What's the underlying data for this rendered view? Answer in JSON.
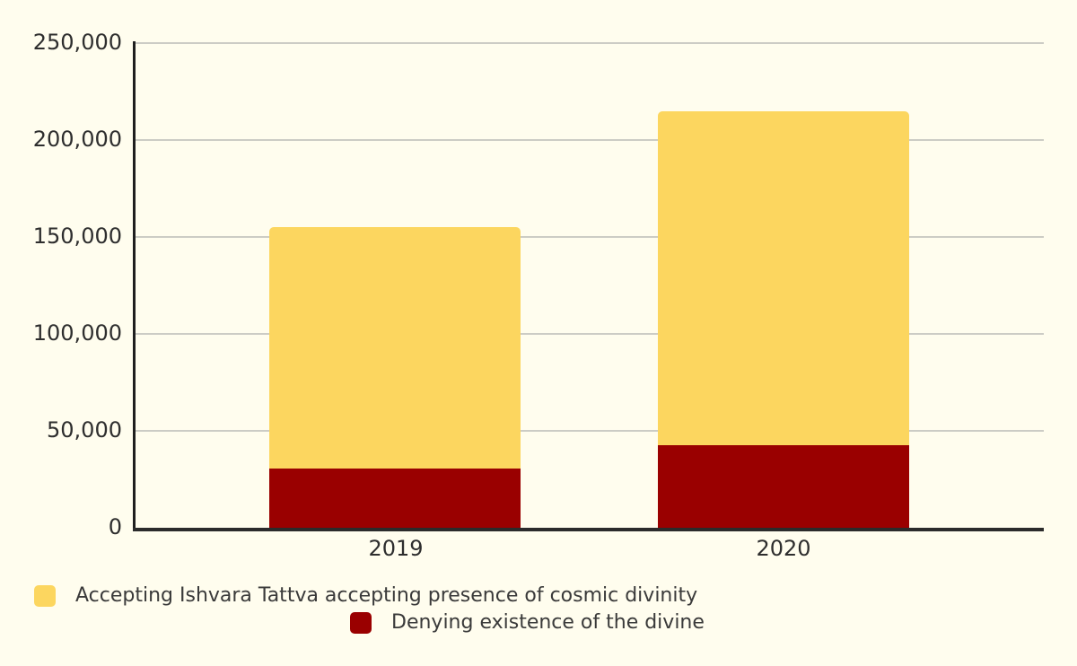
{
  "chart_data": {
    "type": "bar",
    "stacked": true,
    "title": "",
    "xlabel": "",
    "ylabel": "",
    "categories": [
      "2019",
      "2020"
    ],
    "series": [
      {
        "name": "Accepting Ishvara Tattva accepting presence of cosmic divinity",
        "color": "#FCD65F",
        "values": [
          124500,
          172500
        ]
      },
      {
        "name": "Denying existence of the divine",
        "color": "#9A0000",
        "values": [
          30500,
          42500
        ]
      }
    ],
    "stack_order_bottom_to_top": [
      "Denying existence of the divine",
      "Accepting Ishvara Tattva accepting presence of cosmic divinity"
    ],
    "totals": [
      155000,
      215000
    ],
    "ylim": [
      0,
      250000
    ],
    "yticks": [
      {
        "label": "250,000",
        "value": 250000
      },
      {
        "label": "200,000",
        "value": 200000
      },
      {
        "label": "150,000",
        "value": 150000
      },
      {
        "label": "100,000",
        "value": 100000
      },
      {
        "label": "50,000",
        "value": 50000
      },
      {
        "label": "0",
        "value": 0
      }
    ],
    "grid": "horizontal",
    "legend_position": "bottom"
  },
  "colors": {
    "background": "#FFFDEE",
    "gridline": "#CCCCC5",
    "axis": "#2B2B2B",
    "tick_text": "#2E2E2E",
    "accepting_yellow": "#FCD65F",
    "denying_red": "#9A0000"
  }
}
